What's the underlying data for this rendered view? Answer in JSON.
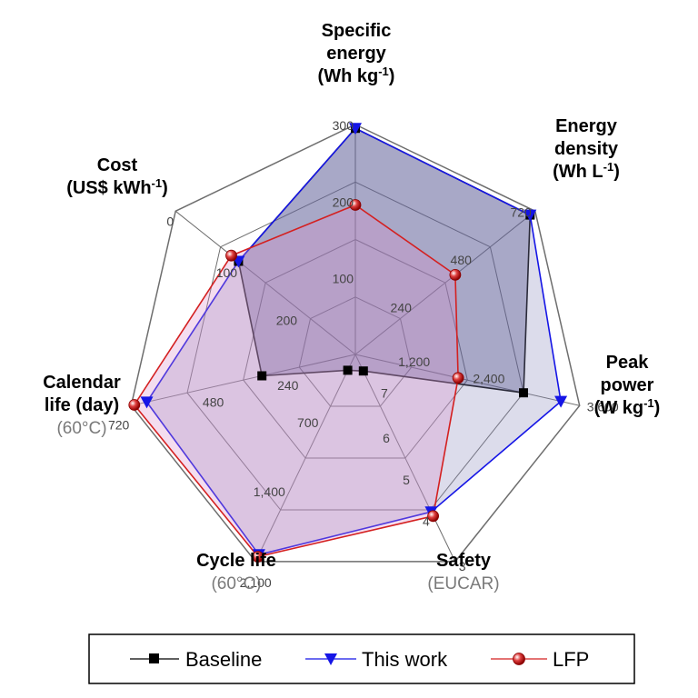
{
  "chart_data": {
    "type": "radar",
    "axes": [
      {
        "id": "specific-energy",
        "title_lines": [
          [
            "Specific",
            ""
          ],
          [
            "energy",
            ""
          ],
          [
            "(Wh kg",
            "-1",
            ")"
          ]
        ],
        "sub": "",
        "ticks": [
          "100",
          "200",
          "300"
        ],
        "min": 0,
        "max": 300
      },
      {
        "id": "energy-density",
        "title_lines": [
          [
            "Energy",
            ""
          ],
          [
            "density",
            ""
          ],
          [
            "(Wh L",
            "-1",
            ")"
          ]
        ],
        "sub": "",
        "ticks": [
          "240",
          "480",
          "720"
        ],
        "min": 0,
        "max": 720
      },
      {
        "id": "peak-power",
        "title_lines": [
          [
            "Peak",
            ""
          ],
          [
            "power",
            ""
          ],
          [
            "(W kg",
            "-1",
            ")"
          ]
        ],
        "sub": "",
        "ticks": [
          "1,200",
          "2,400",
          "3,600"
        ],
        "min": 0,
        "max": 3600
      },
      {
        "id": "safety",
        "title_lines": [
          [
            "Safety",
            ""
          ]
        ],
        "sub": "(EUCAR)",
        "ticks": [
          "6",
          "5",
          "4",
          "3"
        ],
        "min": 8,
        "max": 3
      },
      {
        "id": "cycle-life",
        "title_lines": [
          [
            "Cycle life",
            ""
          ]
        ],
        "sub": "(60°C)",
        "ticks": [
          "700",
          "1,400",
          "2,100"
        ],
        "min": 0,
        "max": 2100
      },
      {
        "id": "calendar-life",
        "title_lines": [
          [
            "Calendar",
            ""
          ],
          [
            "life (day)",
            ""
          ]
        ],
        "sub": "(60°C)",
        "ticks": [
          "240",
          "480",
          "720"
        ],
        "min": 0,
        "max": 720
      },
      {
        "id": "cost",
        "title_lines": [
          [
            "Cost",
            ""
          ],
          [
            "(US$ kWh",
            "-1",
            ")"
          ]
        ],
        "sub": "",
        "ticks": [
          "200",
          "100",
          "0"
        ],
        "min": 300,
        "max": 0
      }
    ],
    "extra_tick": {
      "axis": "safety",
      "label": "7"
    },
    "series": [
      {
        "name": "Baseline",
        "color": "#000000",
        "marker": "square",
        "fill": "#2a2a6e",
        "fill_opacity": 0.35,
        "values": [
          295,
          700,
          2700,
          7.6,
          160,
          300,
          105
        ]
      },
      {
        "name": "This work",
        "color": "#1515e6",
        "marker": "triangle-down",
        "fill": "#8c8cbe",
        "fill_opacity": 0.3,
        "values": [
          295,
          700,
          3300,
          4.2,
          2030,
          670,
          105
        ]
      },
      {
        "name": "LFP",
        "color": "#d42020",
        "marker": "circle",
        "fill": "#d98ec9",
        "fill_opacity": 0.3,
        "values": [
          195,
          400,
          1650,
          4.1,
          2050,
          710,
          93
        ]
      }
    ]
  },
  "legend": {
    "items": [
      {
        "label": "Baseline"
      },
      {
        "label": "This work"
      },
      {
        "label": "LFP"
      }
    ]
  }
}
